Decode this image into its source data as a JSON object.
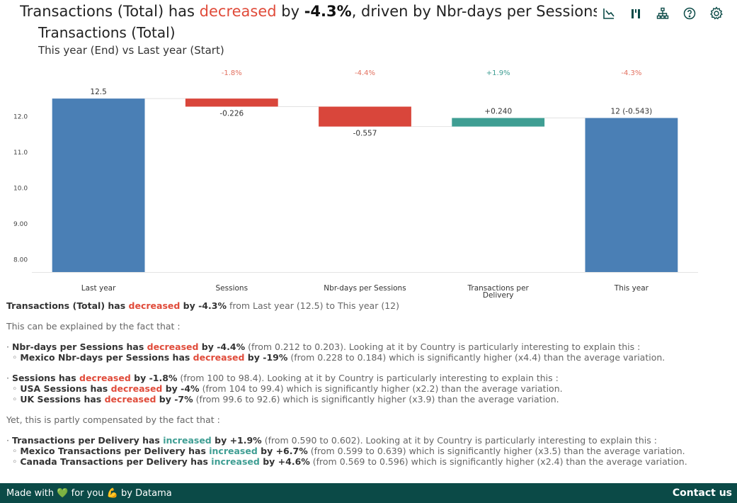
{
  "header": {
    "part1": "Transactions (Total) has ",
    "direction": "decreased",
    "part2": " by ",
    "value": "-4.3%",
    "part3": ", driven by Nbr-days per Sessions"
  },
  "chart_data": {
    "type": "waterfall",
    "title": "Transactions (Total)",
    "subtitle": "This year (End) vs Last year (Start)",
    "ylim": [
      7.65,
      12.72
    ],
    "yticks": [
      8.0,
      9.0,
      10.0,
      11.0,
      12.0
    ],
    "ytick_labels": [
      "8.00",
      "9.00",
      "10.0",
      "11.0",
      "12.0"
    ],
    "colors": {
      "total": "#4a7fb5",
      "decrease": "#d9463b",
      "increase": "#3f9e93"
    },
    "steps": [
      {
        "category": "Last year",
        "kind": "total",
        "start": 0,
        "end": 12.5,
        "label": "12.5",
        "pct": ""
      },
      {
        "category": "Sessions",
        "kind": "decrease",
        "start": 12.5,
        "end": 12.274,
        "label": "-0.226",
        "pct": "-1.8%"
      },
      {
        "category": "Nbr-days per Sessions",
        "kind": "decrease",
        "start": 12.274,
        "end": 11.717,
        "label": "-0.557",
        "pct": "-4.4%"
      },
      {
        "category": "Transactions per Delivery",
        "kind": "increase",
        "start": 11.717,
        "end": 11.957,
        "label": "+0.240",
        "pct": "+1.9%"
      },
      {
        "category": "This year",
        "kind": "total",
        "start": 0,
        "end": 11.957,
        "label": "12 (-0.543)",
        "pct": "-4.3%"
      }
    ]
  },
  "narrative": {
    "summary": {
      "subject": "Transactions (Total) has ",
      "dir": "decreased",
      "value": " by -4.3%",
      "rest": " from Last year (12.5) to This year (12)"
    },
    "intro": "This can be explained by the fact that :",
    "decreases": [
      {
        "subject": "Nbr-days per Sessions has ",
        "dir": "decreased",
        "value": " by -4.4%",
        "rest": " (from 0.212 to 0.203). Looking at it by Country is particularly interesting to explain this :",
        "details": [
          {
            "subject": "Mexico Nbr-days per Sessions has ",
            "dir": "decreased",
            "value": " by -19%",
            "rest": " (from 0.228 to 0.184) which is significantly higher (x4.4) than the average variation."
          }
        ]
      },
      {
        "subject": "Sessions has ",
        "dir": "decreased",
        "value": " by -1.8%",
        "rest": " (from 100 to 98.4). Looking at it by Country is particularly interesting to explain this :",
        "details": [
          {
            "subject": "USA Sessions has ",
            "dir": "decreased",
            "value": " by -4%",
            "rest": " (from 104 to 99.4) which is significantly higher (x2.2) than the average variation."
          },
          {
            "subject": "UK Sessions has ",
            "dir": "decreased",
            "value": " by -7%",
            "rest": " (from 99.6 to 92.6) which is significantly higher (x3.9) than the average variation."
          }
        ]
      }
    ],
    "compensation_intro": "Yet, this is partly compensated by the fact that :",
    "increases": [
      {
        "subject": "Transactions per Delivery has ",
        "dir": "increased",
        "value": " by +1.9%",
        "rest": " (from 0.590 to 0.602). Looking at it by Country is particularly interesting to explain this :",
        "details": [
          {
            "subject": "Mexico Transactions per Delivery has ",
            "dir": "increased",
            "value": " by +6.7%",
            "rest": " (from 0.599 to 0.639) which is significantly higher (x3.5) than the average variation."
          },
          {
            "subject": "Canada Transactions per Delivery has ",
            "dir": "increased",
            "value": " by +4.6%",
            "rest": " (from 0.569 to 0.596) which is significantly higher (x2.4) than the average variation."
          }
        ]
      }
    ]
  },
  "footer": {
    "made_with": "Made with",
    "for_you": "for you",
    "by": "by Datama",
    "contact": "Contact us"
  },
  "icons": [
    "chart-type-icon",
    "bar-toggle-icon",
    "hierarchy-icon",
    "help-icon",
    "settings-icon"
  ]
}
